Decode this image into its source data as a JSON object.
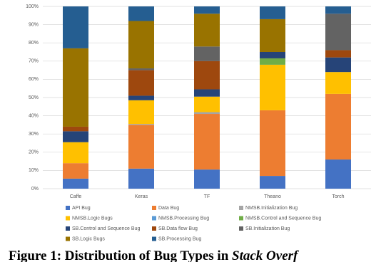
{
  "chart_data": {
    "type": "stacked-bar",
    "categories": [
      "Caffe",
      "Keras",
      "TF",
      "Theano",
      "Torch"
    ],
    "series": [
      {
        "name": "API Bug",
        "color": "#4472c4",
        "values": [
          5.5,
          11,
          10.5,
          7,
          16
        ]
      },
      {
        "name": "Data Bug",
        "color": "#ed7d31",
        "values": [
          8.5,
          24,
          30.5,
          36,
          36
        ]
      },
      {
        "name": "NMSB.Initialization Bug",
        "color": "#a5a5a5",
        "values": [
          0,
          0.5,
          1,
          0,
          0
        ]
      },
      {
        "name": "NMSB.Logic Bugs",
        "color": "#ffc000",
        "values": [
          11.5,
          13,
          8.5,
          25,
          12
        ]
      },
      {
        "name": "NMSB.Processing Bug",
        "color": "#5b9bd5",
        "values": [
          0,
          0,
          0,
          0,
          0
        ]
      },
      {
        "name": "NMSB.Control and Sequence Bug",
        "color": "#70ad47",
        "values": [
          0,
          0,
          0,
          3.5,
          0
        ]
      },
      {
        "name": "SB.Control and Sequence Bug",
        "color": "#264478",
        "values": [
          6,
          2.5,
          4,
          3.5,
          8
        ]
      },
      {
        "name": "SB.Data flow Bug",
        "color": "#9e480e",
        "values": [
          2.5,
          14,
          15.5,
          0,
          4
        ]
      },
      {
        "name": "SB.Initialization Bug",
        "color": "#636363",
        "values": [
          0,
          1,
          8,
          0,
          20
        ]
      },
      {
        "name": "SB.Logic Bugs",
        "color": "#997300",
        "values": [
          43,
          26,
          18,
          18,
          0
        ]
      },
      {
        "name": "SB.Processing Bug",
        "color": "#255e91",
        "values": [
          23,
          8,
          4,
          7,
          4
        ]
      }
    ],
    "ylim": [
      0,
      100
    ],
    "yticks": [
      {
        "value": 0,
        "label": "0%"
      },
      {
        "value": 10,
        "label": "10%"
      },
      {
        "value": 20,
        "label": "20%"
      },
      {
        "value": 30,
        "label": "30%"
      },
      {
        "value": 40,
        "label": "40%"
      },
      {
        "value": 50,
        "label": "50%"
      },
      {
        "value": 60,
        "label": "60%"
      },
      {
        "value": 70,
        "label": "70%"
      },
      {
        "value": 80,
        "label": "80%"
      },
      {
        "value": 90,
        "label": "90%"
      },
      {
        "value": 100,
        "label": "100%"
      }
    ],
    "grid": true,
    "legend": "bottom"
  },
  "caption": {
    "text": "Figure 1: Distribution of Bug Types in",
    "emphasis": "Stack Overf"
  }
}
